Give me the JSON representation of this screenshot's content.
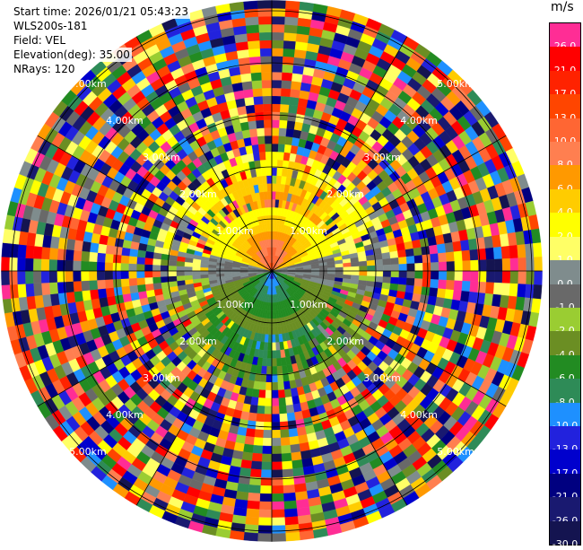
{
  "info": {
    "start_time": "Start time: 2026/01/21 05:43:23",
    "instrument": "WLS200s-181",
    "field": "Field: VEL",
    "elevation": "Elevation(deg): 35.00",
    "nrays": "NRays: 120"
  },
  "colorbar": {
    "title": "m/s",
    "levels": [
      {
        "label": "26.0",
        "color": "#ff2d95"
      },
      {
        "label": "21.0",
        "color": "#ff0000"
      },
      {
        "label": "17.0",
        "color": "#ff2200"
      },
      {
        "label": "13.0",
        "color": "#ff4500"
      },
      {
        "label": "10.0",
        "color": "#ff6633"
      },
      {
        "label": "8.0",
        "color": "#ff7f50"
      },
      {
        "label": "6.0",
        "color": "#ff9900"
      },
      {
        "label": "4.0",
        "color": "#ffcc00"
      },
      {
        "label": "2.0",
        "color": "#ffff00"
      },
      {
        "label": "1.0",
        "color": "#ffff66"
      },
      {
        "label": "0.0",
        "color": "#7f8c8d"
      },
      {
        "label": "-1.0",
        "color": "#696969"
      },
      {
        "label": "-2.0",
        "color": "#9acd32"
      },
      {
        "label": "-4.0",
        "color": "#6b8e23"
      },
      {
        "label": "-6.0",
        "color": "#228b22"
      },
      {
        "label": "-8.0",
        "color": "#2e8b57"
      },
      {
        "label": "-10.0",
        "color": "#1e90ff"
      },
      {
        "label": "-13.0",
        "color": "#2222dd"
      },
      {
        "label": "-17.0",
        "color": "#0000cd"
      },
      {
        "label": "-21.0",
        "color": "#000080"
      },
      {
        "label": "-26.0",
        "color": "#191970"
      },
      {
        "label": "-30.0",
        "color": "#141450"
      }
    ]
  },
  "chart_data": {
    "type": "heatmap",
    "projection": "polar PPI",
    "field": "VEL",
    "units": "m/s",
    "nrays": 120,
    "range_rings_km": [
      1,
      2,
      3,
      4,
      5
    ],
    "ring_labels": [
      "1.00km",
      "2.00km",
      "3.00km",
      "4.00km",
      "5.00km"
    ],
    "max_range_km": 5.2,
    "spoke_angles_deg": [
      0,
      30,
      60,
      90,
      120,
      150,
      180,
      210,
      240,
      270,
      300,
      330
    ],
    "inner_core": {
      "range_km": [
        0,
        1.2
      ],
      "positive_sector_deg": [
        20,
        160
      ],
      "negative_sector_deg": [
        200,
        340
      ],
      "peak_pos_ms": 13,
      "peak_neg_ms": -10
    },
    "coherent_limit_km": 2.3,
    "outer_region": "noise"
  }
}
